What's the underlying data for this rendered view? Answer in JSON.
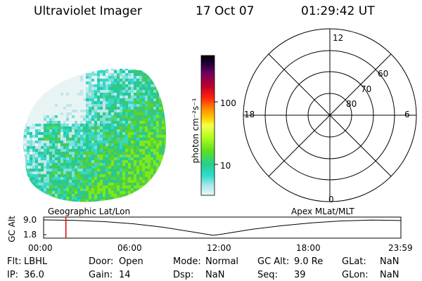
{
  "header": {
    "title": "Ultraviolet Imager",
    "date": "17 Oct 07",
    "time": "01:29:42 UT"
  },
  "colorbar": {
    "unit_label": "photon cm⁻²s⁻¹",
    "tick_labels": [
      "100",
      "10"
    ],
    "scale": "log"
  },
  "polar": {
    "mlt_labels": [
      "12",
      "18",
      "6",
      "0"
    ],
    "lat_labels": [
      "60",
      "70",
      "80"
    ]
  },
  "timeline": {
    "left_title": "Geographic Lat/Lon",
    "right_title": "Apex MLat/MLT",
    "axis_title": "GC Alt",
    "y_ticks": [
      "9.0",
      "1.8"
    ],
    "x_ticks": [
      "00:00",
      "06:00",
      "12:00",
      "18:00",
      "23:59"
    ],
    "current_time_fraction": 0.0624,
    "altitude_curve": {
      "hours": [
        0,
        2,
        4,
        6,
        8,
        10,
        11.4,
        12,
        14,
        16,
        18,
        20,
        22,
        23.98
      ],
      "altitude_re": [
        9.0,
        8.8,
        8.2,
        7.2,
        5.6,
        3.4,
        1.8,
        2.4,
        4.6,
        6.3,
        7.6,
        8.5,
        8.9,
        8.7
      ]
    }
  },
  "status": {
    "row1": [
      {
        "label": "Flt:",
        "value": "LBHL"
      },
      {
        "label": "Door:",
        "value": "Open"
      },
      {
        "label": "Mode:",
        "value": "Normal"
      },
      {
        "label": "GC Alt:",
        "value": "9.0 Re"
      },
      {
        "label": "GLat:",
        "value": "NaN"
      }
    ],
    "row2": [
      {
        "label": "IP:",
        "value": "36.0"
      },
      {
        "label": "Gain:",
        "value": "14"
      },
      {
        "label": "Dsp:",
        "value": "NaN"
      },
      {
        "label": "Seq:",
        "value": "39"
      },
      {
        "label": "GLon:",
        "value": "NaN"
      }
    ]
  },
  "colors": {
    "time_marker": "#e00000",
    "image_palette": [
      "#e8f4f4",
      "#bfe7ea",
      "#7fe0d8",
      "#33d8c8",
      "#27c89a",
      "#3fc86a",
      "#5ad232",
      "#7ee81a"
    ]
  }
}
